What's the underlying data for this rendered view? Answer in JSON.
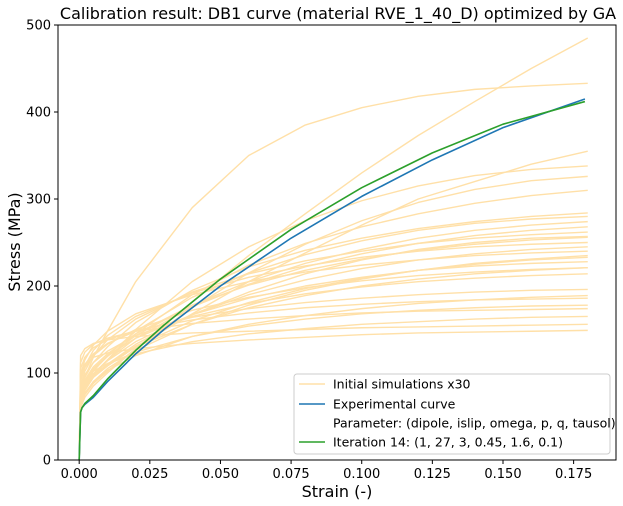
{
  "chart_data": {
    "type": "line",
    "title": "Calibration result: DB1 curve (material RVE_1_40_D) optimized by GA",
    "xlabel": "Strain (-)",
    "ylabel": "Stress (MPa)",
    "xlim": [
      -0.0075,
      0.19
    ],
    "ylim": [
      0,
      500
    ],
    "xticks": [
      0.0,
      0.025,
      0.05,
      0.075,
      0.1,
      0.125,
      0.15,
      0.175
    ],
    "xtick_labels": [
      "0.000",
      "0.025",
      "0.050",
      "0.075",
      "0.100",
      "0.125",
      "0.150",
      "0.175"
    ],
    "yticks": [
      0,
      100,
      200,
      300,
      400,
      500
    ],
    "ytick_labels": [
      "0",
      "100",
      "200",
      "300",
      "400",
      "500"
    ],
    "grid": false,
    "legend_position": "lower-right",
    "legend": [
      {
        "label": "Initial simulations x30",
        "color": "#FFE0A8"
      },
      {
        "label": "Experimental curve",
        "color": "#1f77b4"
      },
      {
        "label": "Parameter: (dipole, islip, omega, p, q, tausol)",
        "color": null
      },
      {
        "label": "Iteration 14: (1, 27, 3, 0.45, 1.6, 0.1)",
        "color": "#2ca02c"
      }
    ],
    "series": [
      {
        "role": "initial",
        "color": "#FFE0A8",
        "x": [
          0,
          0.0005,
          0.002,
          0.005,
          0.01,
          0.02,
          0.04,
          0.06,
          0.08,
          0.1,
          0.12,
          0.14,
          0.16,
          0.18
        ],
        "y": [
          0,
          62,
          75,
          88,
          102,
          128,
          182,
          235,
          283,
          330,
          373,
          412,
          450,
          485
        ]
      },
      {
        "role": "initial",
        "color": "#FFE0A8",
        "x": [
          0,
          0.0005,
          0.002,
          0.005,
          0.01,
          0.02,
          0.04,
          0.06,
          0.08,
          0.1,
          0.12,
          0.14,
          0.16,
          0.18
        ],
        "y": [
          0,
          70,
          82,
          95,
          108,
          130,
          168,
          205,
          238,
          270,
          300,
          320,
          340,
          355
        ]
      },
      {
        "role": "initial",
        "color": "#FFE0A8",
        "x": [
          0,
          0.0005,
          0.002,
          0.005,
          0.01,
          0.02,
          0.04,
          0.06,
          0.08,
          0.1,
          0.12,
          0.14,
          0.16,
          0.18
        ],
        "y": [
          0,
          78,
          95,
          118,
          148,
          205,
          290,
          350,
          385,
          405,
          418,
          426,
          430,
          433
        ]
      },
      {
        "role": "initial",
        "color": "#FFE0A8",
        "x": [
          0,
          0.0005,
          0.002,
          0.005,
          0.01,
          0.02,
          0.04,
          0.06,
          0.08,
          0.1,
          0.12,
          0.14,
          0.16,
          0.18
        ],
        "y": [
          0,
          65,
          80,
          96,
          115,
          150,
          205,
          245,
          275,
          298,
          315,
          327,
          334,
          338
        ]
      },
      {
        "role": "initial",
        "color": "#FFE0A8",
        "x": [
          0,
          0.0005,
          0.002,
          0.005,
          0.01,
          0.02,
          0.04,
          0.06,
          0.08,
          0.1,
          0.12,
          0.14,
          0.16,
          0.18
        ],
        "y": [
          0,
          60,
          72,
          85,
          100,
          128,
          175,
          215,
          248,
          275,
          296,
          311,
          321,
          326
        ]
      },
      {
        "role": "initial",
        "color": "#FFE0A8",
        "x": [
          0,
          0.0005,
          0.002,
          0.005,
          0.01,
          0.02,
          0.04,
          0.06,
          0.08,
          0.1,
          0.12,
          0.14,
          0.16,
          0.18
        ],
        "y": [
          0,
          68,
          82,
          98,
          115,
          145,
          190,
          224,
          249,
          268,
          283,
          295,
          304,
          310
        ]
      },
      {
        "role": "initial",
        "color": "#FFE0A8",
        "x": [
          0,
          0.0005,
          0.002,
          0.005,
          0.01,
          0.02,
          0.04,
          0.06,
          0.08,
          0.1,
          0.12,
          0.14,
          0.16,
          0.18
        ],
        "y": [
          0,
          80,
          95,
          112,
          130,
          158,
          195,
          222,
          241,
          255,
          266,
          274,
          280,
          284
        ]
      },
      {
        "role": "initial",
        "color": "#FFE0A8",
        "x": [
          0,
          0.0005,
          0.002,
          0.005,
          0.01,
          0.02,
          0.04,
          0.06,
          0.08,
          0.1,
          0.12,
          0.14,
          0.16,
          0.18
        ],
        "y": [
          0,
          72,
          86,
          102,
          120,
          148,
          187,
          215,
          236,
          252,
          264,
          272,
          277,
          280
        ]
      },
      {
        "role": "initial",
        "color": "#FFE0A8",
        "x": [
          0,
          0.0005,
          0.002,
          0.005,
          0.01,
          0.02,
          0.04,
          0.06,
          0.08,
          0.1,
          0.12,
          0.14,
          0.16,
          0.18
        ],
        "y": [
          0,
          74,
          88,
          103,
          119,
          143,
          178,
          205,
          226,
          242,
          255,
          264,
          270,
          274
        ]
      },
      {
        "role": "initial",
        "color": "#FFE0A8",
        "x": [
          0,
          0.0005,
          0.002,
          0.005,
          0.01,
          0.02,
          0.04,
          0.06,
          0.08,
          0.1,
          0.12,
          0.14,
          0.16,
          0.18
        ],
        "y": [
          0,
          85,
          102,
          120,
          138,
          162,
          193,
          214,
          229,
          240,
          249,
          255,
          259,
          262
        ]
      },
      {
        "role": "initial",
        "color": "#FFE0A8",
        "x": [
          0,
          0.0005,
          0.002,
          0.005,
          0.01,
          0.02,
          0.04,
          0.06,
          0.08,
          0.1,
          0.12,
          0.14,
          0.16,
          0.18
        ],
        "y": [
          0,
          66,
          80,
          95,
          110,
          133,
          167,
          193,
          214,
          230,
          242,
          250,
          255,
          257
        ]
      },
      {
        "role": "initial",
        "color": "#FFE0A8",
        "x": [
          0,
          0.0005,
          0.002,
          0.005,
          0.01,
          0.02,
          0.04,
          0.06,
          0.08,
          0.1,
          0.12,
          0.14,
          0.16,
          0.18
        ],
        "y": [
          0,
          90,
          108,
          126,
          143,
          165,
          192,
          210,
          223,
          233,
          240,
          245,
          248,
          250
        ]
      },
      {
        "role": "initial",
        "color": "#FFE0A8",
        "x": [
          0,
          0.0005,
          0.002,
          0.005,
          0.01,
          0.02,
          0.04,
          0.06,
          0.08,
          0.1,
          0.12,
          0.14,
          0.16,
          0.18
        ],
        "y": [
          0,
          70,
          84,
          99,
          114,
          136,
          167,
          190,
          207,
          220,
          230,
          237,
          242,
          245
        ]
      },
      {
        "role": "initial",
        "color": "#FFE0A8",
        "x": [
          0,
          0.0005,
          0.002,
          0.005,
          0.01,
          0.02,
          0.04,
          0.06,
          0.08,
          0.1,
          0.12,
          0.14,
          0.16,
          0.18
        ],
        "y": [
          0,
          98,
          115,
          132,
          148,
          168,
          190,
          205,
          216,
          224,
          230,
          235,
          238,
          240
        ]
      },
      {
        "role": "initial",
        "color": "#FFE0A8",
        "x": [
          0,
          0.0005,
          0.002,
          0.005,
          0.01,
          0.02,
          0.04,
          0.06,
          0.08,
          0.1,
          0.12,
          0.14,
          0.16,
          0.18
        ],
        "y": [
          0,
          62,
          76,
          90,
          105,
          126,
          156,
          178,
          195,
          208,
          218,
          226,
          231,
          235
        ]
      },
      {
        "role": "initial",
        "color": "#FFE0A8",
        "x": [
          0,
          0.0005,
          0.002,
          0.005,
          0.01,
          0.02,
          0.04,
          0.06,
          0.08,
          0.1,
          0.12,
          0.14,
          0.16,
          0.18
        ],
        "y": [
          0,
          76,
          90,
          105,
          120,
          140,
          167,
          186,
          200,
          210,
          218,
          223,
          226,
          228
        ]
      },
      {
        "role": "initial",
        "color": "#FFE0A8",
        "x": [
          0,
          0.0005,
          0.002,
          0.005,
          0.01,
          0.02,
          0.04,
          0.06,
          0.08,
          0.1,
          0.12,
          0.14,
          0.16,
          0.18
        ],
        "y": [
          0,
          68,
          82,
          96,
          110,
          130,
          156,
          175,
          189,
          200,
          208,
          214,
          218,
          221
        ]
      },
      {
        "role": "initial",
        "color": "#FFE0A8",
        "x": [
          0,
          0.0005,
          0.002,
          0.005,
          0.01,
          0.02,
          0.04,
          0.06,
          0.08,
          0.1,
          0.12,
          0.14,
          0.16,
          0.18
        ],
        "y": [
          0,
          84,
          98,
          112,
          125,
          143,
          165,
          180,
          191,
          199,
          205,
          209,
          212,
          214
        ]
      },
      {
        "role": "initial",
        "color": "#FFE0A8",
        "x": [
          0,
          0.0005,
          0.002,
          0.005,
          0.01,
          0.02,
          0.04,
          0.06,
          0.08,
          0.1,
          0.12,
          0.14,
          0.16,
          0.18
        ],
        "y": [
          0,
          96,
          110,
          122,
          134,
          148,
          164,
          174,
          181,
          186,
          190,
          193,
          195,
          196
        ]
      },
      {
        "role": "initial",
        "color": "#FFE0A8",
        "x": [
          0,
          0.0005,
          0.002,
          0.005,
          0.01,
          0.02,
          0.04,
          0.06,
          0.08,
          0.1,
          0.12,
          0.14,
          0.16,
          0.18
        ],
        "y": [
          0,
          64,
          77,
          90,
          103,
          120,
          142,
          156,
          166,
          174,
          180,
          184,
          187,
          189
        ]
      },
      {
        "role": "initial",
        "color": "#FFE0A8",
        "x": [
          0,
          0.0005,
          0.002,
          0.005,
          0.01,
          0.02,
          0.04,
          0.06,
          0.08,
          0.1,
          0.12,
          0.14,
          0.16,
          0.18
        ],
        "y": [
          0,
          105,
          118,
          129,
          138,
          149,
          161,
          169,
          175,
          179,
          182,
          184,
          185,
          186
        ]
      },
      {
        "role": "initial",
        "color": "#FFE0A8",
        "x": [
          0,
          0.0005,
          0.002,
          0.005,
          0.01,
          0.02,
          0.04,
          0.06,
          0.08,
          0.1,
          0.12,
          0.14,
          0.16,
          0.18
        ],
        "y": [
          0,
          72,
          85,
          98,
          110,
          124,
          142,
          154,
          162,
          168,
          172,
          175,
          177,
          178
        ]
      },
      {
        "role": "initial",
        "color": "#FFE0A8",
        "x": [
          0,
          0.0005,
          0.002,
          0.005,
          0.01,
          0.02,
          0.04,
          0.06,
          0.08,
          0.1,
          0.12,
          0.14,
          0.16,
          0.18
        ],
        "y": [
          0,
          112,
          124,
          133,
          140,
          148,
          157,
          162,
          166,
          169,
          171,
          172,
          173,
          174
        ]
      },
      {
        "role": "initial",
        "color": "#FFE0A8",
        "x": [
          0,
          0.0005,
          0.002,
          0.005,
          0.01,
          0.02,
          0.04,
          0.06,
          0.08,
          0.1,
          0.12,
          0.14,
          0.16,
          0.18
        ],
        "y": [
          0,
          80,
          92,
          102,
          111,
          122,
          136,
          145,
          151,
          156,
          159,
          162,
          164,
          165
        ]
      },
      {
        "role": "initial",
        "color": "#FFE0A8",
        "x": [
          0,
          0.0005,
          0.002,
          0.005,
          0.01,
          0.02,
          0.04,
          0.06,
          0.08,
          0.1,
          0.12,
          0.14,
          0.16,
          0.18
        ],
        "y": [
          0,
          120,
          128,
          134,
          138,
          142,
          146,
          148,
          150,
          152,
          153,
          154,
          155,
          156
        ]
      },
      {
        "role": "initial",
        "color": "#FFE0A8",
        "x": [
          0,
          0.0005,
          0.002,
          0.005,
          0.01,
          0.02,
          0.04,
          0.06,
          0.08,
          0.1,
          0.12,
          0.14,
          0.16,
          0.18
        ],
        "y": [
          0,
          100,
          110,
          118,
          123,
          128,
          134,
          138,
          141,
          144,
          146,
          147,
          148,
          149
        ]
      },
      {
        "role": "initial",
        "color": "#FFE0A8",
        "x": [
          0,
          0.0005,
          0.002,
          0.005,
          0.01,
          0.02,
          0.04,
          0.06,
          0.08,
          0.1,
          0.12,
          0.14,
          0.16,
          0.18
        ],
        "y": [
          0,
          66,
          80,
          95,
          110,
          131,
          160,
          181,
          197,
          209,
          218,
          225,
          230,
          233
        ]
      },
      {
        "role": "initial",
        "color": "#FFE0A8",
        "x": [
          0,
          0.0005,
          0.002,
          0.005,
          0.01,
          0.02,
          0.04,
          0.06,
          0.08,
          0.1,
          0.12,
          0.14,
          0.16,
          0.18
        ],
        "y": [
          0,
          92,
          106,
          120,
          133,
          150,
          172,
          187,
          198,
          206,
          212,
          216,
          219,
          221
        ]
      },
      {
        "role": "initial",
        "color": "#FFE0A8",
        "x": [
          0,
          0.0005,
          0.002,
          0.005,
          0.01,
          0.02,
          0.04,
          0.06,
          0.08,
          0.1,
          0.12,
          0.14,
          0.16,
          0.18
        ],
        "y": [
          0,
          70,
          84,
          99,
          115,
          140,
          176,
          202,
          222,
          237,
          249,
          258,
          264,
          268
        ]
      },
      {
        "role": "initial",
        "color": "#FFE0A8",
        "x": [
          0,
          0.0005,
          0.002,
          0.005,
          0.01,
          0.02,
          0.04,
          0.06,
          0.08,
          0.1,
          0.12,
          0.14,
          0.16,
          0.18
        ],
        "y": [
          0,
          78,
          92,
          107,
          122,
          145,
          178,
          201,
          218,
          231,
          241,
          248,
          253,
          256
        ]
      },
      {
        "role": "experimental",
        "color": "#1f77b4",
        "x": [
          0,
          0.0005,
          0.001,
          0.002,
          0.005,
          0.01,
          0.02,
          0.03,
          0.05,
          0.075,
          0.1,
          0.125,
          0.15,
          0.179
        ],
        "y": [
          0,
          55,
          60,
          64,
          72,
          90,
          122,
          150,
          200,
          255,
          303,
          345,
          382,
          415
        ]
      },
      {
        "role": "iteration",
        "color": "#2ca02c",
        "x": [
          0,
          0.0005,
          0.001,
          0.002,
          0.005,
          0.01,
          0.02,
          0.03,
          0.05,
          0.075,
          0.1,
          0.125,
          0.15,
          0.179
        ],
        "y": [
          0,
          55,
          60,
          65,
          74,
          93,
          126,
          155,
          208,
          265,
          313,
          353,
          386,
          412
        ]
      }
    ]
  }
}
